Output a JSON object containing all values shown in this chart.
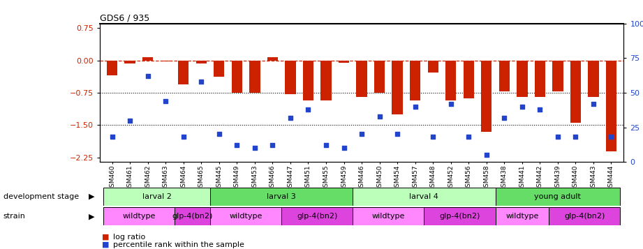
{
  "title": "GDS6 / 935",
  "samples": [
    "GSM460",
    "GSM461",
    "GSM462",
    "GSM463",
    "GSM464",
    "GSM465",
    "GSM445",
    "GSM449",
    "GSM453",
    "GSM466",
    "GSM447",
    "GSM451",
    "GSM455",
    "GSM459",
    "GSM446",
    "GSM450",
    "GSM454",
    "GSM457",
    "GSM448",
    "GSM452",
    "GSM456",
    "GSM458",
    "GSM438",
    "GSM441",
    "GSM442",
    "GSM439",
    "GSM440",
    "GSM443",
    "GSM444"
  ],
  "log_ratio": [
    -0.35,
    -0.08,
    0.07,
    -0.03,
    -0.55,
    -0.08,
    -0.38,
    -0.75,
    -0.75,
    0.08,
    -0.78,
    -0.92,
    -0.92,
    -0.05,
    -0.85,
    -0.75,
    -1.25,
    -0.92,
    -0.28,
    -0.92,
    -0.88,
    -1.65,
    -0.72,
    -0.85,
    -0.85,
    -0.72,
    -1.45,
    -0.85,
    -2.1
  ],
  "percentile": [
    18,
    30,
    62,
    44,
    18,
    58,
    20,
    12,
    10,
    12,
    32,
    38,
    12,
    10,
    20,
    33,
    20,
    40,
    18,
    42,
    18,
    5,
    32,
    40,
    38,
    18,
    18,
    42,
    18
  ],
  "dev_stages": [
    {
      "label": "larval 2",
      "start": 0,
      "end": 6,
      "color": "#bbffbb"
    },
    {
      "label": "larval 3",
      "start": 6,
      "end": 14,
      "color": "#66dd66"
    },
    {
      "label": "larval 4",
      "start": 14,
      "end": 22,
      "color": "#bbffbb"
    },
    {
      "label": "young adult",
      "start": 22,
      "end": 29,
      "color": "#66dd66"
    }
  ],
  "strains": [
    {
      "label": "wildtype",
      "start": 0,
      "end": 4,
      "color": "#ff88ff"
    },
    {
      "label": "glp-4(bn2)",
      "start": 4,
      "end": 6,
      "color": "#dd44dd"
    },
    {
      "label": "wildtype",
      "start": 6,
      "end": 10,
      "color": "#ff88ff"
    },
    {
      "label": "glp-4(bn2)",
      "start": 10,
      "end": 14,
      "color": "#dd44dd"
    },
    {
      "label": "wildtype",
      "start": 14,
      "end": 18,
      "color": "#ff88ff"
    },
    {
      "label": "glp-4(bn2)",
      "start": 18,
      "end": 22,
      "color": "#dd44dd"
    },
    {
      "label": "wildtype",
      "start": 22,
      "end": 25,
      "color": "#ff88ff"
    },
    {
      "label": "glp-4(bn2)",
      "start": 25,
      "end": 29,
      "color": "#dd44dd"
    }
  ],
  "bar_color": "#cc2200",
  "dot_color": "#2244cc",
  "ylim_left": [
    -2.35,
    0.85
  ],
  "ylim_right": [
    0,
    100
  ],
  "yticks_left": [
    0.75,
    0,
    -0.75,
    -1.5,
    -2.25
  ],
  "yticks_right": [
    100,
    75,
    50,
    25,
    0
  ],
  "hlines": [
    -0.75,
    -1.5
  ],
  "legend_items": [
    {
      "label": "log ratio",
      "color": "#cc2200"
    },
    {
      "label": "percentile rank within the sample",
      "color": "#2244cc"
    }
  ]
}
